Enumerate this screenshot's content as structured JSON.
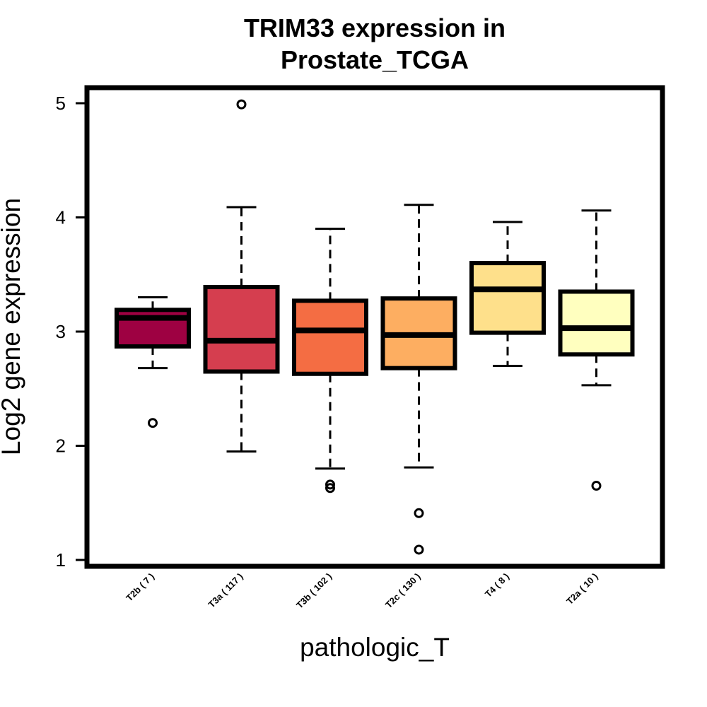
{
  "chart_data": {
    "type": "box",
    "title_line1": "TRIM33 expression in",
    "title_line2": "Prostate_TCGA",
    "xlabel": "pathologic_T",
    "ylabel": "Log2 gene expression",
    "ylim": [
      1,
      5
    ],
    "yticks": [
      "1",
      "2",
      "3",
      "4",
      "5"
    ],
    "categories": [
      "T2b ( 7 )",
      "T3a ( 117 )",
      "T3b ( 102 )",
      "T2c ( 130 )",
      "T4 ( 8 )",
      "T2a ( 10 )"
    ],
    "boxes": [
      {
        "label": "T2b ( 7 )",
        "whisker_low": 2.68,
        "q1": 2.87,
        "median": 3.12,
        "q3": 3.19,
        "whisker_high": 3.3,
        "outliers": [
          2.2
        ],
        "color": "#9e0142"
      },
      {
        "label": "T3a ( 117 )",
        "whisker_low": 1.95,
        "q1": 2.65,
        "median": 2.92,
        "q3": 3.39,
        "whisker_high": 4.09,
        "outliers": [
          4.99
        ],
        "color": "#d53e4f"
      },
      {
        "label": "T3b ( 102 )",
        "whisker_low": 1.8,
        "q1": 2.63,
        "median": 3.01,
        "q3": 3.27,
        "whisker_high": 3.9,
        "outliers": [
          1.63,
          1.66
        ],
        "color": "#f46d43"
      },
      {
        "label": "T2c ( 130 )",
        "whisker_low": 1.81,
        "q1": 2.68,
        "median": 2.97,
        "q3": 3.29,
        "whisker_high": 4.11,
        "outliers": [
          1.41,
          1.09
        ],
        "color": "#fdae61"
      },
      {
        "label": "T4 ( 8 )",
        "whisker_low": 2.7,
        "q1": 2.99,
        "median": 3.37,
        "q3": 3.6,
        "whisker_high": 3.96,
        "outliers": [],
        "color": "#fee08b"
      },
      {
        "label": "T2a ( 10 )",
        "whisker_low": 2.53,
        "q1": 2.8,
        "median": 3.03,
        "q3": 3.35,
        "whisker_high": 4.06,
        "outliers": [
          1.65
        ],
        "color": "#ffffbf"
      }
    ]
  }
}
